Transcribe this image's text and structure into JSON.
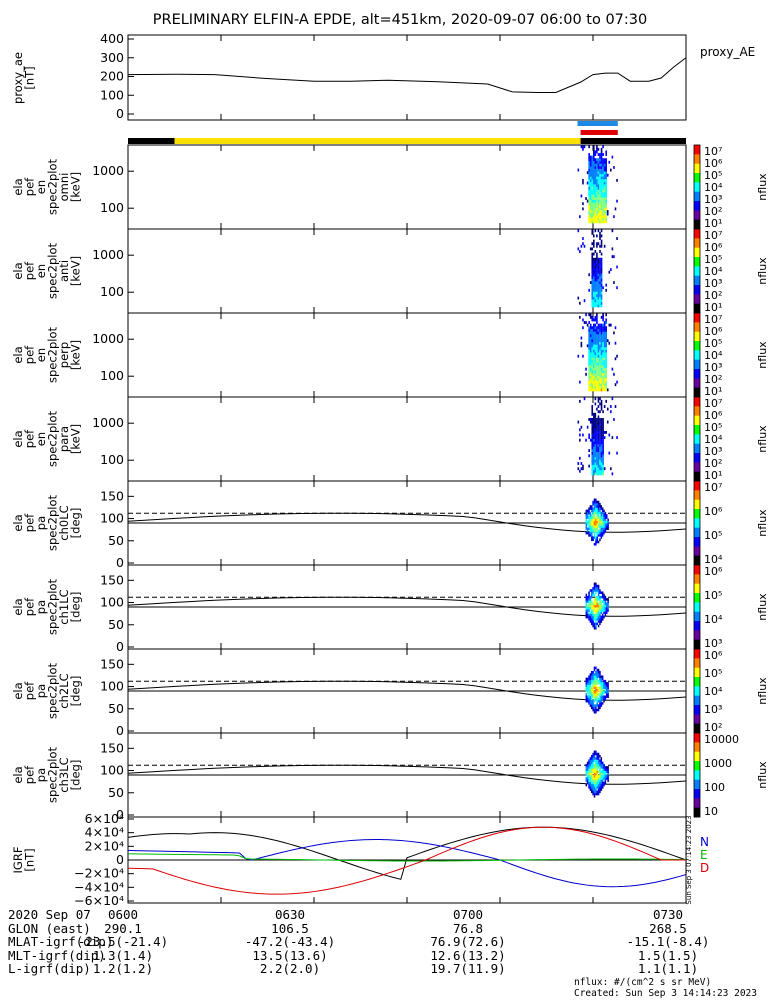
{
  "title": "PRELIMINARY ELFIN-A EPDE, alt=451km, 2020-09-07 06:00 to 07:30",
  "chart_data": [
    {
      "id": "proxy_ae",
      "type": "line",
      "ylabel_lines": [
        "proxy_ae",
        "[nT]"
      ],
      "side_label": "proxy_AE",
      "yticks": [
        "400",
        "300",
        "200",
        "100",
        "0"
      ],
      "ylim": [
        0,
        400
      ],
      "x_minutes": [
        0,
        8,
        14,
        22,
        30,
        36,
        42,
        50,
        58,
        62,
        66,
        69,
        73,
        75,
        77,
        79,
        81,
        84,
        86,
        88,
        90
      ],
      "values": [
        210,
        212,
        210,
        190,
        175,
        175,
        180,
        172,
        160,
        118,
        115,
        115,
        170,
        210,
        218,
        218,
        175,
        175,
        192,
        250,
        300
      ]
    },
    {
      "id": "state_bars",
      "type": "timeline",
      "yellow_span_minutes": [
        7.5,
        73
      ],
      "blue_span_minutes": [
        72.5,
        79
      ],
      "red_span_minutes": [
        73,
        79
      ]
    },
    {
      "id": "omni",
      "type": "heatmap",
      "ylabel_lines": [
        "ela",
        "pef",
        "en",
        "spec2plot",
        "omni",
        "[keV]"
      ],
      "yticks": [
        "1000",
        "100"
      ],
      "cb_ticks": [
        "10⁷",
        "10⁶",
        "10⁵",
        "10⁴",
        "10³",
        "10²",
        "10¹"
      ],
      "cb_unit": "nflux"
    },
    {
      "id": "anti",
      "type": "heatmap",
      "ylabel_lines": [
        "ela",
        "pef",
        "en",
        "spec2plot",
        "anti",
        "[keV]"
      ],
      "yticks": [
        "1000",
        "100"
      ],
      "cb_ticks": [
        "10⁷",
        "10⁶",
        "10⁵",
        "10⁴",
        "10³",
        "10²",
        "10¹"
      ],
      "cb_unit": "nflux"
    },
    {
      "id": "perp",
      "type": "heatmap",
      "ylabel_lines": [
        "ela",
        "pef",
        "en",
        "spec2plot",
        "perp",
        "[keV]"
      ],
      "yticks": [
        "1000",
        "100"
      ],
      "cb_ticks": [
        "10⁷",
        "10⁶",
        "10⁵",
        "10⁴",
        "10³",
        "10²",
        "10¹"
      ],
      "cb_unit": "nflux"
    },
    {
      "id": "para",
      "type": "heatmap",
      "ylabel_lines": [
        "ela",
        "pef",
        "en",
        "spec2plot",
        "para",
        "[keV]"
      ],
      "yticks": [
        "1000",
        "100"
      ],
      "cb_ticks": [
        "10⁷",
        "10⁶",
        "10⁵",
        "10⁴",
        "10³",
        "10²",
        "10¹"
      ],
      "cb_unit": "nflux"
    },
    {
      "id": "ch0LC",
      "type": "heatmap",
      "ylabel_lines": [
        "ela",
        "pef",
        "pa",
        "spec2plot",
        "ch0LC",
        "[deg]"
      ],
      "yticks": [
        "150",
        "100",
        "50",
        "0"
      ],
      "cb_ticks": [
        "10⁷",
        "10⁶",
        "10⁵",
        "10⁴"
      ],
      "cb_unit": "nflux"
    },
    {
      "id": "ch1LC",
      "type": "heatmap",
      "ylabel_lines": [
        "ela",
        "pef",
        "pa",
        "spec2plot",
        "ch1LC",
        "[deg]"
      ],
      "yticks": [
        "150",
        "100",
        "50",
        "0"
      ],
      "cb_ticks": [
        "10⁶",
        "10⁵",
        "10⁴",
        "10³"
      ],
      "cb_unit": "nflux"
    },
    {
      "id": "ch2LC",
      "type": "heatmap",
      "ylabel_lines": [
        "ela",
        "pef",
        "pa",
        "spec2plot",
        "ch2LC",
        "[deg]"
      ],
      "yticks": [
        "150",
        "100",
        "50",
        "0"
      ],
      "cb_ticks": [
        "10⁶",
        "10⁵",
        "10⁴",
        "10³",
        "10²"
      ],
      "cb_unit": "nflux"
    },
    {
      "id": "ch3LC",
      "type": "heatmap",
      "ylabel_lines": [
        "ela",
        "pef",
        "pa",
        "spec2plot",
        "ch3LC",
        "[deg]"
      ],
      "yticks": [
        "150",
        "100",
        "50",
        "0"
      ],
      "cb_ticks": [
        "10000",
        "1000",
        "100",
        "10"
      ],
      "cb_unit": "nflux"
    },
    {
      "id": "igrf",
      "type": "line",
      "ylabel_lines": [
        "IGRF",
        "[nT]"
      ],
      "yticks": [
        "6×10⁴",
        "4×10⁴",
        "2×10⁴",
        "0",
        "−2×10⁴",
        "−4×10⁴",
        "−6×10⁴"
      ],
      "ylim": [
        -60000,
        60000
      ],
      "legend": [
        "N",
        "E",
        "D"
      ],
      "colors": {
        "N": "#0000cc",
        "E": "#00bb00",
        "D": "#dd0000"
      },
      "stamp": "Sun Sep  3 07:14:23 2023"
    }
  ],
  "footer": {
    "rows": [
      [
        "2020 Sep 07",
        "0600",
        "0630",
        "0700",
        "0730"
      ],
      [
        "GLON (east)",
        "290.1",
        "106.5",
        "76.8",
        "268.5"
      ],
      [
        "MLAT-igrf(dip)",
        "-23.5(-21.4)",
        "-47.2(-43.4)",
        "76.9(72.6)",
        "-15.1(-8.4)"
      ],
      [
        "MLT-igrf(dip)",
        "1.3(1.4)",
        "13.5(13.6)",
        "12.6(13.2)",
        "1.5(1.5)"
      ],
      [
        "L-igrf(dip)",
        "1.2(1.2)",
        "2.2(2.0)",
        "19.7(11.9)",
        "1.1(1.1)"
      ]
    ],
    "credit_unit": "nflux: #/(cm^2 s sr MeV)",
    "credit_created": "Created: Sun Sep  3 14:14:23 2023"
  }
}
